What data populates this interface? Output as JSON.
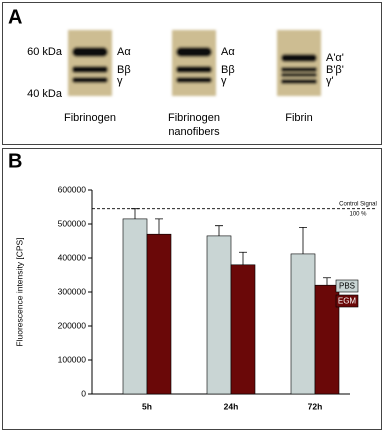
{
  "panel_a": {
    "label": "A",
    "markers": [
      "60 kDa",
      "40 kDa"
    ],
    "lanes": [
      {
        "caption": [
          "Fibrinogen"
        ],
        "bands": [
          "Aα",
          "Bβ",
          "γ"
        ]
      },
      {
        "caption": [
          "Fibrinogen",
          "nanofibers"
        ],
        "bands": [
          "Aα",
          "Bβ",
          "γ"
        ]
      },
      {
        "caption": [
          "Fibrin"
        ],
        "bands": [
          "A'α'",
          "B'β'",
          "γ'"
        ]
      }
    ]
  },
  "chart_data": {
    "type": "bar",
    "panel_label": "B",
    "y_label": "Fluorescence intensity [CPS]",
    "categories": [
      "5h",
      "24h",
      "72h"
    ],
    "series": [
      {
        "name": "PBS",
        "color": "#c9d5d4",
        "values": [
          515000,
          465000,
          412000
        ],
        "errors": [
          30000,
          30000,
          78000
        ]
      },
      {
        "name": "EGM",
        "color": "#6a0808",
        "values": [
          470000,
          380000,
          320000
        ],
        "errors": [
          45000,
          37000,
          22000
        ]
      }
    ],
    "ylim": [
      0,
      600000
    ],
    "yticks": [
      0,
      100000,
      200000,
      300000,
      400000,
      500000,
      600000
    ],
    "reference_line": {
      "value": 545000,
      "labels": [
        "Control Signal",
        "100 %"
      ]
    }
  }
}
